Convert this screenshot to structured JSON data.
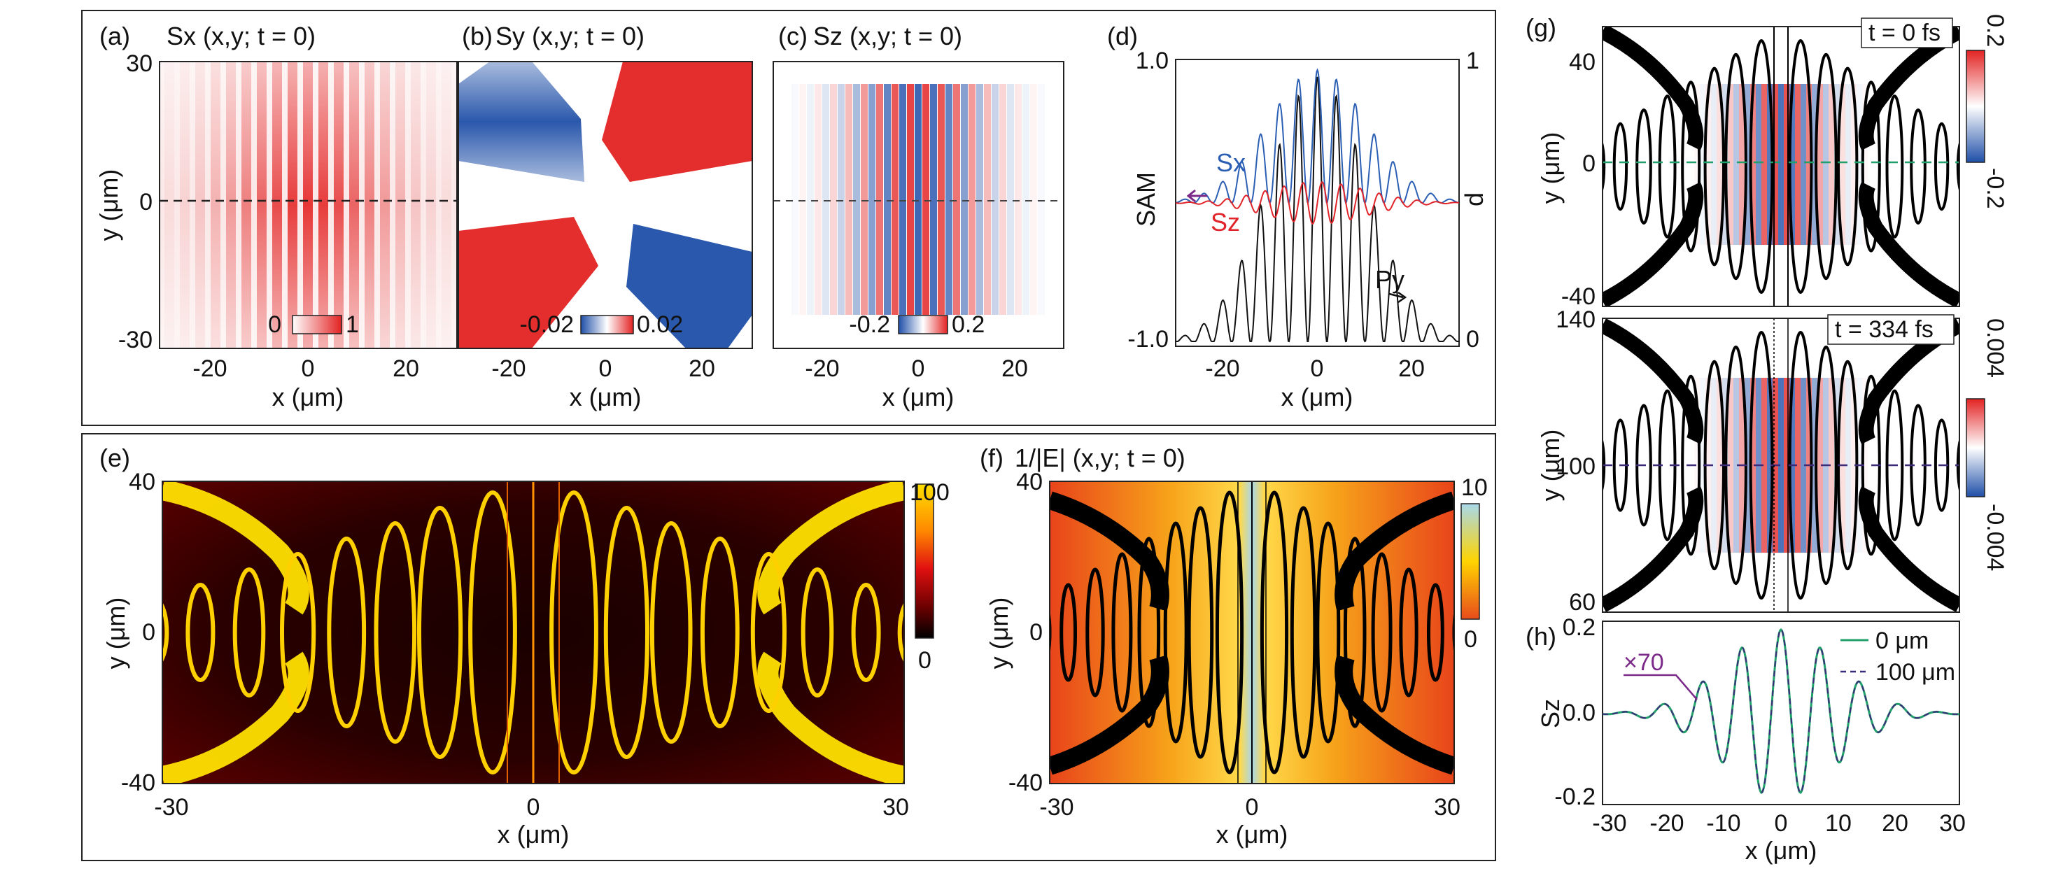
{
  "chart_data": [
    {
      "panel": "(a)",
      "type": "heatmap",
      "title": "Sx (x,y; t = 0)",
      "xlabel": "x (μm)",
      "ylabel": "y (μm)",
      "xlim": [
        -30,
        30
      ],
      "ylim": [
        -30,
        30
      ],
      "xticks": [
        "-20",
        "0",
        "20"
      ],
      "yticks": [
        "30",
        "0",
        "-30"
      ],
      "colorbar": {
        "min": "0",
        "max": "1",
        "colors": [
          "#ffffff",
          "#e32222"
        ]
      },
      "guide": "dashed line y = 0"
    },
    {
      "panel": "(b)",
      "type": "heatmap",
      "title": "Sy (x,y; t = 0)",
      "xlabel": "x (μm)",
      "xticks": [
        "-20",
        "0",
        "20"
      ],
      "colorbar": {
        "min": "-0.02",
        "max": "0.02",
        "colors": [
          "#1f4fa8",
          "#ffffff",
          "#e32222"
        ]
      }
    },
    {
      "panel": "(c)",
      "type": "heatmap",
      "title": "Sz (x,y; t = 0)",
      "xlabel": "x (μm)",
      "xticks": [
        "-20",
        "0",
        "20"
      ],
      "colorbar": {
        "min": "-0.2",
        "max": "0.2",
        "colors": [
          "#1f4fa8",
          "#ffffff",
          "#e32222"
        ]
      },
      "guide": "dashed line y = 0"
    },
    {
      "panel": "(d)",
      "type": "line",
      "xlabel": "x (μm)",
      "ylabel": "SAM",
      "y2label": "p",
      "xlim": [
        -30,
        30
      ],
      "ylim": [
        -1.0,
        1.0
      ],
      "y2lim": [
        0,
        1
      ],
      "xticks": [
        "-20",
        "0",
        "20"
      ],
      "yticks": [
        "1.0",
        "-1.0"
      ],
      "y2ticks": [
        "1",
        "0"
      ],
      "series": [
        {
          "name": "Sx",
          "color": "#2b5fb4"
        },
        {
          "name": "Sz",
          "color": "#e0242a"
        },
        {
          "name": "p",
          "color": "#111111"
        }
      ],
      "annotations": [
        "Py"
      ]
    },
    {
      "panel": "(e)",
      "type": "heatmap",
      "xlabel": "x (μm)",
      "ylabel": "y (μm)",
      "xlim": [
        -30,
        30
      ],
      "ylim": [
        -40,
        40
      ],
      "xticks": [
        "-30",
        "0",
        "30"
      ],
      "yticks": [
        "40",
        "0",
        "-40"
      ],
      "colorbar": {
        "min": "0",
        "max": "100",
        "colors": [
          "#000000",
          "#6b0000",
          "#e01010",
          "#ff8a00",
          "#ffe000"
        ]
      }
    },
    {
      "panel": "(f)",
      "type": "heatmap",
      "title": "1/|E| (x,y; t = 0)",
      "xlabel": "x (μm)",
      "ylabel": "y (μm)",
      "xlim": [
        -30,
        30
      ],
      "ylim": [
        -40,
        40
      ],
      "xticks": [
        "-30",
        "0",
        "30"
      ],
      "yticks": [
        "40",
        "0",
        "-40"
      ],
      "colorbar": {
        "min": "0",
        "max": "10",
        "colors": [
          "#e84b1c",
          "#ffd400",
          "#a8d8ea"
        ]
      }
    },
    {
      "panel": "(g)",
      "type": "heatmap",
      "ylabel": "y (μm)",
      "subplots": [
        {
          "label": "t = 0 fs",
          "yticks": [
            "40",
            "0",
            "-40"
          ],
          "colorbar": {
            "min": "-0.2",
            "max": "0.2"
          }
        },
        {
          "label": "t = 334 fs",
          "yticks": [
            "140",
            "100",
            "60"
          ],
          "colorbar": {
            "min": "-0.004",
            "max": "0.004"
          }
        }
      ]
    },
    {
      "panel": "(h)",
      "type": "line",
      "xlabel": "x (μm)",
      "ylabel": "Sz",
      "xlim": [
        -30,
        30
      ],
      "ylim": [
        -0.2,
        0.2
      ],
      "xticks": [
        "-30",
        "-20",
        "-10",
        "0",
        "10",
        "20",
        "30"
      ],
      "yticks": [
        "0.2",
        "0.0",
        "-0.2"
      ],
      "series": [
        {
          "name": "0 μm",
          "color": "#22a06b"
        },
        {
          "name": "100 μm",
          "color": "#3d2a7a"
        }
      ],
      "annotations": [
        "×70"
      ]
    }
  ]
}
